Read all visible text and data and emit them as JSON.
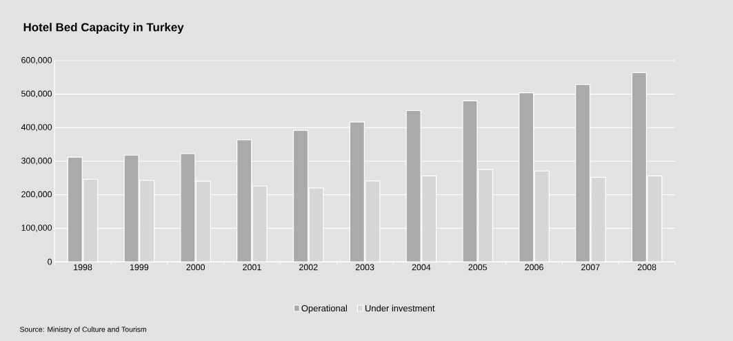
{
  "chart_data": {
    "type": "bar",
    "title": "Hotel Bed Capacity in Turkey",
    "categories": [
      "1998",
      "1999",
      "2000",
      "2001",
      "2002",
      "2003",
      "2004",
      "2005",
      "2006",
      "2007",
      "2008"
    ],
    "series": [
      {
        "name": "Operational",
        "color": "#aaaaaa",
        "values": [
          312000,
          318000,
          323000,
          364000,
          392000,
          417000,
          451000,
          480000,
          504000,
          529000,
          564000
        ]
      },
      {
        "name": "Under investment",
        "color": "#d6d6d6",
        "values": [
          246000,
          243000,
          240000,
          226000,
          220000,
          241000,
          256000,
          275000,
          271000,
          252000,
          256000
        ]
      }
    ],
    "ylim": [
      0,
      600000
    ],
    "yticks": [
      {
        "value": 0,
        "label": "0"
      },
      {
        "value": 100000,
        "label": "100,000"
      },
      {
        "value": 200000,
        "label": "200,000"
      },
      {
        "value": 300000,
        "label": "300,000"
      },
      {
        "value": 400000,
        "label": "400,000"
      },
      {
        "value": 500000,
        "label": "500,000"
      },
      {
        "value": 600000,
        "label": "600,000"
      }
    ],
    "grid": "y",
    "legend": "bottom",
    "annotations": [
      "Source: Ministry of Culture and Tourism"
    ]
  }
}
